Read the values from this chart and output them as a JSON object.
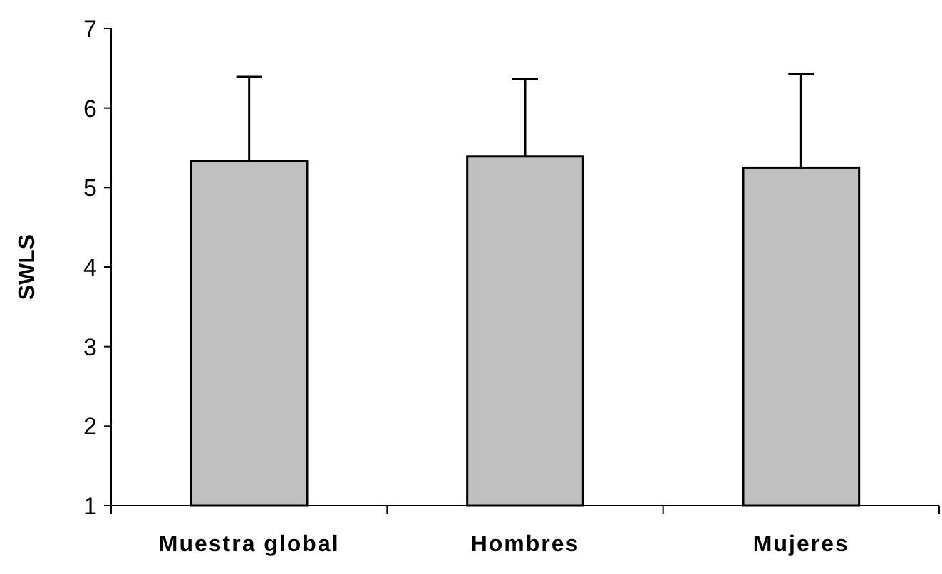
{
  "chart_data": {
    "type": "bar",
    "ylabel": "SWLS",
    "categories": [
      "Muestra global",
      "Hombres",
      "Mujeres"
    ],
    "values": [
      5.33,
      5.39,
      5.25
    ],
    "errors": [
      [
        5.33,
        6.39
      ],
      [
        5.39,
        6.36
      ],
      [
        5.25,
        6.43
      ]
    ],
    "color": "#c0c0c0",
    "ylim": [
      1,
      7
    ],
    "yticks": [
      1,
      2,
      3,
      4,
      5,
      6,
      7
    ],
    "grid": false
  }
}
